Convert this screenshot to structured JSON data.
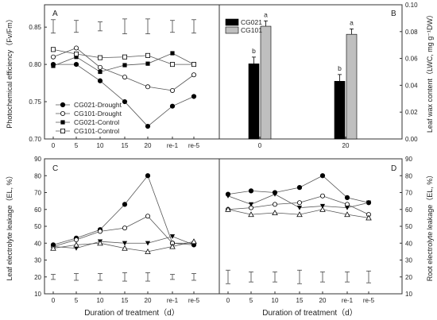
{
  "figure": {
    "x_axis_label": "Duration of treatment（d）"
  },
  "chart_data": [
    {
      "panel": "A",
      "type": "line",
      "ylabel": "Photochemical efficiency（Fv/Fm）",
      "ylim": [
        0.7,
        0.88
      ],
      "yticks": [
        0.7,
        0.75,
        0.8,
        0.85
      ],
      "categories": [
        "0",
        "5",
        "10",
        "15",
        "20",
        "re-1",
        "re-5"
      ],
      "legend_position": "bottom-left",
      "series": [
        {
          "name": "CG021-Drought",
          "marker": "filled-circle",
          "values": [
            0.8,
            0.8,
            0.778,
            0.75,
            0.717,
            0.744,
            0.757
          ]
        },
        {
          "name": "CG101-Drought",
          "marker": "open-circle",
          "values": [
            0.81,
            0.822,
            0.796,
            0.783,
            0.77,
            0.765,
            0.786
          ]
        },
        {
          "name": "CG021-Control",
          "marker": "filled-square",
          "values": [
            0.798,
            0.81,
            0.79,
            0.799,
            0.801,
            0.815,
            0.8
          ]
        },
        {
          "name": "CG101-Control",
          "marker": "open-square",
          "values": [
            0.82,
            0.814,
            0.809,
            0.81,
            0.812,
            0.8,
            0.8
          ]
        }
      ],
      "error_bars": {
        "center": [
          0.851,
          0.851,
          0.851,
          0.851,
          0.851,
          0.851,
          0.851
        ],
        "half_range": [
          0.009,
          0.008,
          0.006,
          0.01,
          0.01,
          0.008,
          0.009
        ]
      }
    },
    {
      "panel": "B",
      "type": "bar",
      "ylabel": "Leaf wax content（LWC, mg g⁻¹DW）",
      "ylim": [
        0,
        0.1
      ],
      "yticks": [
        0.0,
        0.02,
        0.04,
        0.06,
        0.08,
        0.1
      ],
      "categories": [
        "0",
        "20"
      ],
      "legend_position": "top-left",
      "series": [
        {
          "name": "CG021",
          "color": "#000000",
          "values": [
            0.056,
            0.043
          ],
          "errors": [
            0.005,
            0.005
          ],
          "letters": [
            "b",
            "b"
          ]
        },
        {
          "name": "CG101",
          "color": "#bfbfbf",
          "values": [
            0.084,
            0.078
          ],
          "errors": [
            0.004,
            0.004
          ],
          "letters": [
            "a",
            "a"
          ]
        }
      ]
    },
    {
      "panel": "C",
      "type": "line",
      "ylabel": "Leaf electrolyte leakage（EL, %）",
      "ylim": [
        10,
        90
      ],
      "yticks": [
        10,
        20,
        30,
        40,
        50,
        60,
        70,
        80,
        90
      ],
      "categories": [
        "0",
        "5",
        "10",
        "15",
        "20",
        "re-1",
        "re-5"
      ],
      "series": [
        {
          "marker": "filled-circle",
          "values": [
            39,
            43,
            48,
            63,
            80,
            40,
            39
          ]
        },
        {
          "marker": "open-circle",
          "values": [
            38,
            42,
            47,
            49,
            56,
            40,
            40
          ]
        },
        {
          "marker": "filled-triangle-down",
          "values": [
            38,
            37,
            41,
            40,
            40,
            44,
            39
          ]
        },
        {
          "marker": "open-triangle-up",
          "values": [
            37,
            39,
            40,
            37,
            35,
            38,
            41
          ]
        }
      ],
      "error_bars": {
        "center": [
          20,
          20,
          20,
          20,
          20,
          20,
          20
        ],
        "half_range": [
          1.5,
          2,
          2,
          2.5,
          2.5,
          1.5,
          2
        ]
      }
    },
    {
      "panel": "D",
      "type": "line",
      "ylabel": "Root electrolyte leakage（EL, %）",
      "ylim": [
        10,
        90
      ],
      "yticks": [
        10,
        20,
        30,
        40,
        50,
        60,
        70,
        80,
        90
      ],
      "categories": [
        "0",
        "5",
        "10",
        "15",
        "20",
        "re-1",
        "re-5"
      ],
      "series": [
        {
          "marker": "filled-circle",
          "values": [
            69,
            71,
            70,
            73,
            80,
            67,
            64
          ]
        },
        {
          "marker": "open-circle",
          "values": [
            60,
            61,
            63,
            64,
            68,
            63,
            57
          ]
        },
        {
          "marker": "filled-triangle-down",
          "values": [
            68,
            63,
            69,
            61,
            62,
            61,
            64
          ]
        },
        {
          "marker": "open-triangle-up",
          "values": [
            60,
            57,
            58,
            57,
            60,
            57,
            55
          ]
        }
      ],
      "error_bars": {
        "center": [
          20,
          20,
          20,
          20,
          20,
          20,
          20
        ],
        "half_range": [
          4,
          3,
          3,
          4,
          3,
          3,
          3.5
        ]
      }
    }
  ]
}
